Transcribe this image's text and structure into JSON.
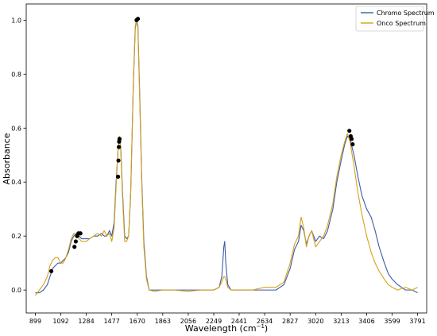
{
  "chart_data": {
    "type": "line",
    "xlabel": "Wavelength (cm",
    "xlabel_sup": "−1",
    "xlabel_suffix": ")",
    "ylabel": "Absorbance",
    "xlim": [
      830,
      3860
    ],
    "ylim": [
      -0.085,
      1.06
    ],
    "x_ticks": [
      899,
      1092,
      1284,
      1477,
      1670,
      1863,
      2056,
      2249,
      2441,
      2634,
      2827,
      3020,
      3213,
      3406,
      3599,
      3791
    ],
    "y_ticks": [
      0.0,
      0.2,
      0.4,
      0.6,
      0.8,
      1.0
    ],
    "y_tick_labels": [
      "0.0",
      "0.2",
      "0.4",
      "0.6",
      "0.8",
      "1.0"
    ],
    "grid": false,
    "legend": "top-right",
    "series": [
      {
        "name": "Chromo Spectrum",
        "color": "#3b5aa8",
        "points": [
          [
            899,
            -0.01
          ],
          [
            930,
            -0.01
          ],
          [
            960,
            0.0
          ],
          [
            990,
            0.02
          ],
          [
            1010,
            0.05
          ],
          [
            1030,
            0.08
          ],
          [
            1050,
            0.09
          ],
          [
            1070,
            0.1
          ],
          [
            1092,
            0.1
          ],
          [
            1110,
            0.11
          ],
          [
            1130,
            0.12
          ],
          [
            1150,
            0.14
          ],
          [
            1170,
            0.18
          ],
          [
            1190,
            0.2
          ],
          [
            1210,
            0.21
          ],
          [
            1230,
            0.2
          ],
          [
            1250,
            0.19
          ],
          [
            1284,
            0.19
          ],
          [
            1310,
            0.19
          ],
          [
            1340,
            0.2
          ],
          [
            1370,
            0.2
          ],
          [
            1400,
            0.21
          ],
          [
            1420,
            0.2
          ],
          [
            1440,
            0.2
          ],
          [
            1460,
            0.22
          ],
          [
            1477,
            0.2
          ],
          [
            1495,
            0.25
          ],
          [
            1510,
            0.4
          ],
          [
            1525,
            0.52
          ],
          [
            1535,
            0.56
          ],
          [
            1545,
            0.53
          ],
          [
            1560,
            0.35
          ],
          [
            1575,
            0.2
          ],
          [
            1590,
            0.19
          ],
          [
            1605,
            0.2
          ],
          [
            1620,
            0.35
          ],
          [
            1640,
            0.75
          ],
          [
            1655,
            0.97
          ],
          [
            1665,
            1.0
          ],
          [
            1675,
            0.98
          ],
          [
            1690,
            0.7
          ],
          [
            1705,
            0.4
          ],
          [
            1720,
            0.18
          ],
          [
            1740,
            0.05
          ],
          [
            1760,
            0.0
          ],
          [
            1800,
            0.0
          ],
          [
            1863,
            0.0
          ],
          [
            1950,
            0.0
          ],
          [
            2056,
            0.0
          ],
          [
            2150,
            0.0
          ],
          [
            2249,
            0.0
          ],
          [
            2290,
            0.01
          ],
          [
            2310,
            0.05
          ],
          [
            2325,
            0.16
          ],
          [
            2332,
            0.18
          ],
          [
            2340,
            0.1
          ],
          [
            2355,
            0.02
          ],
          [
            2380,
            0.0
          ],
          [
            2441,
            0.0
          ],
          [
            2540,
            0.0
          ],
          [
            2634,
            0.0
          ],
          [
            2720,
            0.0
          ],
          [
            2780,
            0.02
          ],
          [
            2827,
            0.08
          ],
          [
            2860,
            0.15
          ],
          [
            2890,
            0.18
          ],
          [
            2910,
            0.24
          ],
          [
            2930,
            0.22
          ],
          [
            2950,
            0.17
          ],
          [
            2970,
            0.2
          ],
          [
            2990,
            0.22
          ],
          [
            3020,
            0.18
          ],
          [
            3050,
            0.2
          ],
          [
            3080,
            0.19
          ],
          [
            3110,
            0.22
          ],
          [
            3150,
            0.3
          ],
          [
            3180,
            0.4
          ],
          [
            3213,
            0.48
          ],
          [
            3240,
            0.54
          ],
          [
            3260,
            0.57
          ],
          [
            3280,
            0.56
          ],
          [
            3310,
            0.5
          ],
          [
            3340,
            0.42
          ],
          [
            3370,
            0.35
          ],
          [
            3406,
            0.3
          ],
          [
            3440,
            0.27
          ],
          [
            3470,
            0.22
          ],
          [
            3500,
            0.16
          ],
          [
            3540,
            0.1
          ],
          [
            3570,
            0.06
          ],
          [
            3599,
            0.04
          ],
          [
            3640,
            0.02
          ],
          [
            3700,
            0.0
          ],
          [
            3750,
            0.0
          ],
          [
            3791,
            -0.01
          ]
        ]
      },
      {
        "name": "Onco Spectrum",
        "color": "#d4a21a",
        "points": [
          [
            899,
            -0.02
          ],
          [
            930,
            0.0
          ],
          [
            960,
            0.02
          ],
          [
            990,
            0.05
          ],
          [
            1010,
            0.09
          ],
          [
            1030,
            0.11
          ],
          [
            1050,
            0.12
          ],
          [
            1070,
            0.12
          ],
          [
            1092,
            0.1
          ],
          [
            1110,
            0.1
          ],
          [
            1130,
            0.12
          ],
          [
            1150,
            0.15
          ],
          [
            1170,
            0.19
          ],
          [
            1190,
            0.21
          ],
          [
            1210,
            0.21
          ],
          [
            1230,
            0.19
          ],
          [
            1250,
            0.18
          ],
          [
            1284,
            0.18
          ],
          [
            1310,
            0.19
          ],
          [
            1340,
            0.2
          ],
          [
            1370,
            0.21
          ],
          [
            1400,
            0.2
          ],
          [
            1420,
            0.22
          ],
          [
            1440,
            0.2
          ],
          [
            1460,
            0.21
          ],
          [
            1477,
            0.18
          ],
          [
            1495,
            0.23
          ],
          [
            1510,
            0.38
          ],
          [
            1525,
            0.52
          ],
          [
            1535,
            0.57
          ],
          [
            1545,
            0.52
          ],
          [
            1560,
            0.33
          ],
          [
            1575,
            0.18
          ],
          [
            1590,
            0.18
          ],
          [
            1605,
            0.2
          ],
          [
            1620,
            0.36
          ],
          [
            1640,
            0.76
          ],
          [
            1655,
            0.98
          ],
          [
            1665,
            1.0
          ],
          [
            1675,
            0.97
          ],
          [
            1690,
            0.68
          ],
          [
            1705,
            0.38
          ],
          [
            1720,
            0.16
          ],
          [
            1740,
            0.04
          ],
          [
            1760,
            0.0
          ],
          [
            1800,
            -0.005
          ],
          [
            1863,
            0.0
          ],
          [
            1950,
            0.0
          ],
          [
            2056,
            -0.005
          ],
          [
            2150,
            0.0
          ],
          [
            2249,
            0.0
          ],
          [
            2290,
            0.01
          ],
          [
            2310,
            0.03
          ],
          [
            2325,
            0.05
          ],
          [
            2332,
            0.05
          ],
          [
            2340,
            0.04
          ],
          [
            2355,
            0.01
          ],
          [
            2380,
            0.0
          ],
          [
            2441,
            0.0
          ],
          [
            2540,
            0.0
          ],
          [
            2634,
            0.01
          ],
          [
            2720,
            0.01
          ],
          [
            2780,
            0.03
          ],
          [
            2827,
            0.1
          ],
          [
            2860,
            0.17
          ],
          [
            2890,
            0.2
          ],
          [
            2910,
            0.27
          ],
          [
            2930,
            0.23
          ],
          [
            2950,
            0.16
          ],
          [
            2970,
            0.2
          ],
          [
            2990,
            0.22
          ],
          [
            3020,
            0.16
          ],
          [
            3050,
            0.18
          ],
          [
            3080,
            0.2
          ],
          [
            3110,
            0.24
          ],
          [
            3150,
            0.32
          ],
          [
            3180,
            0.42
          ],
          [
            3213,
            0.5
          ],
          [
            3240,
            0.55
          ],
          [
            3260,
            0.58
          ],
          [
            3280,
            0.55
          ],
          [
            3310,
            0.46
          ],
          [
            3340,
            0.36
          ],
          [
            3370,
            0.28
          ],
          [
            3406,
            0.2
          ],
          [
            3440,
            0.14
          ],
          [
            3470,
            0.1
          ],
          [
            3500,
            0.07
          ],
          [
            3540,
            0.04
          ],
          [
            3570,
            0.02
          ],
          [
            3599,
            0.01
          ],
          [
            3640,
            0.0
          ],
          [
            3700,
            0.01
          ],
          [
            3750,
            0.0
          ],
          [
            3791,
            0.01
          ]
        ]
      }
    ],
    "markers": {
      "color": "#000000",
      "points": [
        [
          1020,
          0.07
        ],
        [
          1195,
          0.16
        ],
        [
          1205,
          0.18
        ],
        [
          1215,
          0.2
        ],
        [
          1225,
          0.21
        ],
        [
          1240,
          0.21
        ],
        [
          1525,
          0.42
        ],
        [
          1528,
          0.48
        ],
        [
          1531,
          0.53
        ],
        [
          1533,
          0.55
        ],
        [
          1536,
          0.56
        ],
        [
          1665,
          1.0
        ],
        [
          1675,
          1.005
        ],
        [
          3275,
          0.59
        ],
        [
          3285,
          0.57
        ],
        [
          3292,
          0.56
        ],
        [
          3300,
          0.54
        ]
      ]
    }
  }
}
